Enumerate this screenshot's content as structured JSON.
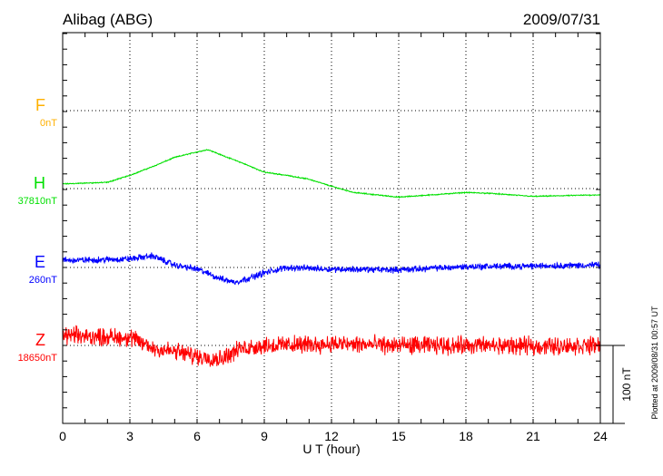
{
  "chart_data": {
    "type": "line",
    "title": "Alibag (ABG)",
    "date": "2009/07/31",
    "xlabel": "U T (hour)",
    "xlim": [
      0,
      24
    ],
    "xticks": [
      "0",
      "3",
      "6",
      "9",
      "12",
      "15",
      "18",
      "21",
      "24"
    ],
    "scale_label": "100 nT",
    "scale_nT": 100,
    "footer": "Plotted at 2009/08/31 00:57 UT",
    "grid": true,
    "series": [
      {
        "name": "F",
        "baseline_label": "0nT",
        "color": "#ffb000",
        "points": []
      },
      {
        "name": "H",
        "baseline_label": "37810nT",
        "baseline": 37810,
        "color": "#00e000",
        "noise_nT": 0.8,
        "points": [
          [
            0,
            6
          ],
          [
            2,
            8
          ],
          [
            3,
            17
          ],
          [
            4,
            28
          ],
          [
            5,
            40
          ],
          [
            6,
            47
          ],
          [
            6.5,
            50
          ],
          [
            7,
            44
          ],
          [
            8,
            33
          ],
          [
            9,
            21
          ],
          [
            10,
            17
          ],
          [
            11,
            12
          ],
          [
            12,
            3
          ],
          [
            13,
            -5
          ],
          [
            15,
            -11
          ],
          [
            16,
            -9
          ],
          [
            18,
            -5
          ],
          [
            19,
            -6
          ],
          [
            21,
            -10
          ],
          [
            24,
            -8
          ]
        ]
      },
      {
        "name": "E",
        "baseline_label": "260nT",
        "baseline": 260,
        "color": "#0000ff",
        "noise_nT": 5,
        "points": [
          [
            0,
            9
          ],
          [
            2,
            10
          ],
          [
            3,
            11
          ],
          [
            4,
            15
          ],
          [
            5,
            3
          ],
          [
            6,
            -2
          ],
          [
            7,
            -14
          ],
          [
            7.7,
            -19
          ],
          [
            8.5,
            -12
          ],
          [
            9,
            -7
          ],
          [
            10,
            0
          ],
          [
            12,
            -2
          ],
          [
            15,
            -3
          ],
          [
            18,
            1
          ],
          [
            21,
            2
          ],
          [
            24,
            3
          ]
        ]
      },
      {
        "name": "Z",
        "baseline_label": "18650nT",
        "baseline": 18650,
        "color": "#ff0000",
        "noise_nT": 14,
        "points": [
          [
            0,
            13
          ],
          [
            3,
            10
          ],
          [
            4,
            -3
          ],
          [
            5,
            -8
          ],
          [
            6,
            -14
          ],
          [
            7,
            -17
          ],
          [
            8,
            -4
          ],
          [
            9,
            0
          ],
          [
            12,
            2
          ],
          [
            15,
            0
          ],
          [
            18,
            0
          ],
          [
            21,
            -1
          ],
          [
            24,
            0
          ]
        ]
      }
    ]
  }
}
